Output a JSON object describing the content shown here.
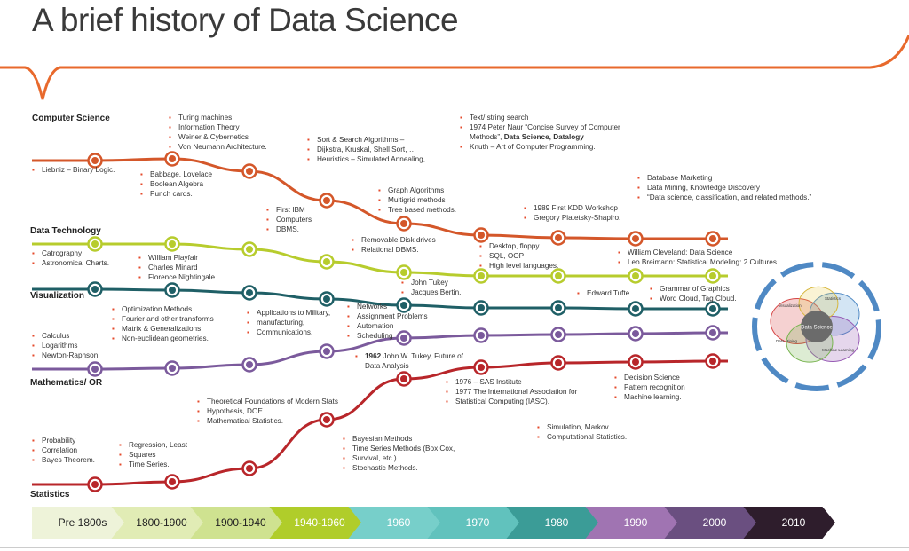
{
  "title": "A brief history of Data Science",
  "colors": {
    "computer_science": "#d4572a",
    "data_technology": "#b7cc2d",
    "visualization": "#1f5f66",
    "mathematics_or": "#7b5a9c",
    "statistics": "#b8262a",
    "bullet": "#e5492a",
    "banner": "#e8692c"
  },
  "lanes": {
    "computer_science": "Computer Science",
    "data_technology": "Data Technology",
    "visualization": "Visualization",
    "mathematics_or": "Mathematics/ OR",
    "statistics": "Statistics"
  },
  "eras": [
    "Pre 1800s",
    "1800-1900",
    "1900-1940",
    "1940-1960",
    "1960",
    "1970",
    "1980",
    "1990",
    "2000",
    "2010"
  ],
  "notes": {
    "cs_pre": [
      "Liebniz – Binary Logic."
    ],
    "cs_1900": [
      "Turing machines",
      "Information Theory",
      "Weiner & Cybernetics",
      "Von Neumann Architecture."
    ],
    "cs_1800": [
      "Babbage, Lovelace",
      "Boolean Algebra",
      "Punch cards."
    ],
    "cs_1940": [
      "Sort & Search Algorithms –",
      "Dijkstra, Kruskal, Shell Sort, …",
      "Heuristics – Simulated Annealing, …"
    ],
    "cs_1960": [
      "Graph Algorithms",
      "Multigrid methods",
      "Tree based methods."
    ],
    "cs_1970_a": "Text/ string search",
    "cs_1970_b": "1974 Peter Naur “Concise Survey of Computer",
    "cs_1970_c": "Methods”,",
    "cs_1970_bold": "Data Science, Datalogy",
    "cs_1970_d": "Knuth – Art of Computer Programming.",
    "cs_2000": [
      "Database Marketing",
      "Data Mining, Knowledge Discovery",
      "“Data science, classification, and related methods.”"
    ],
    "dt_1940": [
      "First IBM",
      "Computers",
      "DBMS."
    ],
    "dt_1980": [
      "1989 First KDD Workshop",
      "Gregory Piatetsky-Shapiro."
    ],
    "dt_1960": [
      "Removable Disk drives",
      "Relational DBMS."
    ],
    "dt_1970": [
      "Desktop, floppy",
      "SQL, OOP",
      "High level languages."
    ],
    "dt_2000": [
      "William Cleveland: Data Science",
      "Leo Breimann: Statistical Modeling: 2 Cultures."
    ],
    "vis_pre": [
      "Catrography",
      "Astronomical Charts."
    ],
    "vis_1800": [
      "William Playfair",
      "Charles Minard",
      "Florence Nightingale."
    ],
    "vis_1960": [
      "John Tukey",
      "Jacques Bertin."
    ],
    "vis_1980": [
      "Edward Tufte."
    ],
    "vis_2000": [
      "Grammar of Graphics",
      "Word Cloud, Tag Cloud."
    ],
    "or_1800": [
      "Optimization Methods",
      "Fourier and other transforms",
      "Matrix & Generalizations",
      "Non-euclidean geometries."
    ],
    "or_1940": [
      "Applications to Military,",
      "manufacturing,",
      "Communications."
    ],
    "or_1960": [
      "Networks",
      "Assignment Problems",
      "Automation",
      "Scheduling"
    ],
    "or_pre": [
      "Calculus",
      "Logarithms",
      "Newton-Raphson."
    ],
    "st_tukey_bold": "1962",
    "st_tukey": [
      "John W. Tukey, Future of",
      "Data Analysis"
    ],
    "st_1970": [
      "1976 – SAS Institute",
      "1977 The International Association for",
      "Statistical Computing (IASC)."
    ],
    "st_2000": [
      "Decision Science",
      "Pattern recognition",
      "Machine learning."
    ],
    "st_1900": [
      "Theoretical Foundations of Modern Stats",
      "Hypothesis, DOE",
      "Mathematical Statistics."
    ],
    "st_1990": [
      "Simulation, Markov",
      "Computational Statistics."
    ],
    "st_pre": [
      "Probability",
      "Correlation",
      "Bayes Theorem."
    ],
    "st_1800": [
      "Regression, Least",
      "Squares",
      "Time Series."
    ],
    "st_1960": [
      "Bayesian Methods",
      "Time Series Methods (Box Cox,",
      "Survival, etc.)",
      "Stochastic Methods."
    ]
  },
  "venn": {
    "center": "Data Science",
    "labels": [
      "Visualization",
      "Statistics",
      "Machine Learning",
      "Data Mining"
    ]
  }
}
